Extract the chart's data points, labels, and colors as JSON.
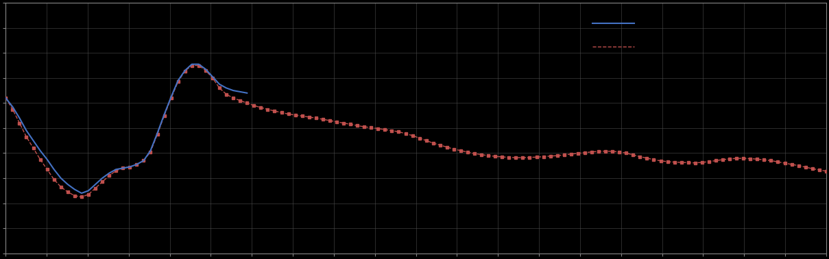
{
  "background_color": "#000000",
  "plot_bg_color": "#000000",
  "grid_color": "#4d4d4d",
  "blue_line_color": "#4472c4",
  "red_line_color": "#c0504d",
  "figsize": [
    12.09,
    3.78
  ],
  "dpi": 100,
  "xlim": [
    0,
    119
  ],
  "ylim": [
    0,
    10
  ],
  "n_gridlines_x": 20,
  "n_gridlines_y": 10,
  "blue_y": [
    6.2,
    5.85,
    5.4,
    4.9,
    4.5,
    4.1,
    3.75,
    3.35,
    3.0,
    2.75,
    2.55,
    2.4,
    2.5,
    2.75,
    3.0,
    3.2,
    3.35,
    3.4,
    3.45,
    3.55,
    3.7,
    4.1,
    4.8,
    5.55,
    6.25,
    6.9,
    7.3,
    7.55,
    7.55,
    7.35,
    7.05,
    6.75,
    6.6,
    6.5,
    6.45,
    6.4
  ],
  "red_y": [
    6.2,
    5.75,
    5.2,
    4.65,
    4.2,
    3.75,
    3.35,
    2.95,
    2.65,
    2.45,
    2.3,
    2.25,
    2.35,
    2.6,
    2.85,
    3.1,
    3.3,
    3.4,
    3.45,
    3.55,
    3.7,
    4.05,
    4.75,
    5.5,
    6.2,
    6.85,
    7.28,
    7.5,
    7.5,
    7.3,
    7.0,
    6.6,
    6.35,
    6.2,
    6.1,
    6.0,
    5.9,
    5.82,
    5.75,
    5.68,
    5.62,
    5.56,
    5.52,
    5.48,
    5.44,
    5.4,
    5.35,
    5.3,
    5.25,
    5.2,
    5.15,
    5.1,
    5.05,
    5.02,
    4.98,
    4.94,
    4.9,
    4.85,
    4.78,
    4.7,
    4.6,
    4.5,
    4.4,
    4.32,
    4.24,
    4.16,
    4.1,
    4.04,
    3.98,
    3.94,
    3.9,
    3.87,
    3.85,
    3.83,
    3.82,
    3.82,
    3.83,
    3.84,
    3.86,
    3.88,
    3.9,
    3.93,
    3.96,
    3.99,
    4.02,
    4.05,
    4.07,
    4.08,
    4.07,
    4.05,
    4.0,
    3.93,
    3.86,
    3.8,
    3.74,
    3.69,
    3.66,
    3.64,
    3.63,
    3.62,
    3.61,
    3.63,
    3.66,
    3.7,
    3.74,
    3.77,
    3.79,
    3.79,
    3.78,
    3.76,
    3.73,
    3.7,
    3.65,
    3.6,
    3.55,
    3.5,
    3.44,
    3.38,
    3.33,
    3.28
  ]
}
